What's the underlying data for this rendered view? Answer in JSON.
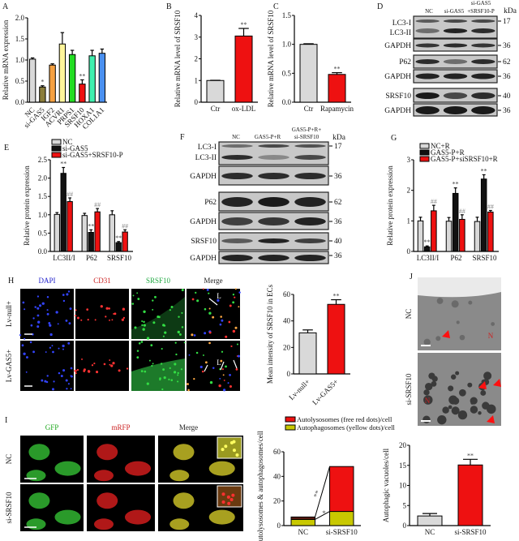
{
  "panels": {
    "A": "A",
    "B": "B",
    "C": "C",
    "D": "D",
    "E": "E",
    "F": "F",
    "G": "G",
    "H": "H",
    "I": "I",
    "J": "J"
  },
  "colors": {
    "grey": "#d9d9d9",
    "red": "#ee1111",
    "black": "#111111",
    "olive": "#8b7d3a",
    "yellow": "#c8c800",
    "darkred": "#5a1a10"
  },
  "chart_data": [
    {
      "id": "A",
      "type": "bar",
      "ylabel": "Relative mRNA expression",
      "ylim": [
        0,
        2.0
      ],
      "ticks": [
        "0.0",
        "0.5",
        "1.0",
        "1.5",
        "2.0"
      ],
      "tick_values": [
        0,
        0.5,
        1,
        1.5,
        2
      ],
      "categories": [
        "NC",
        "si-GAS5",
        "IGF2",
        "ACVR1",
        "PRPS1",
        "SRSF10",
        "HOXA1",
        "COL1A1"
      ],
      "series": [
        {
          "name": "",
          "values": [
            1.02,
            0.36,
            0.88,
            1.38,
            1.13,
            0.43,
            1.1,
            1.16
          ],
          "errors": [
            0.03,
            0.03,
            0.03,
            0.27,
            0.1,
            0.1,
            0.13,
            0.1
          ],
          "colors": [
            "#d9d9d9",
            "#8b7d3a",
            "#f5a040",
            "#fff59a",
            "#22dd22",
            "#ee1111",
            "#40f0b0",
            "#4a90f0"
          ],
          "sig": [
            "",
            "*",
            "",
            "",
            "",
            "**",
            "",
            ""
          ]
        }
      ]
    },
    {
      "id": "B",
      "type": "bar",
      "ylabel": "Relative mRNA level of SRSF10",
      "ylim": [
        0,
        4
      ],
      "ticks": [
        "0",
        "1",
        "2",
        "3",
        "4"
      ],
      "tick_values": [
        0,
        1,
        2,
        3,
        4
      ],
      "categories": [
        "Ctr",
        "ox-LDL"
      ],
      "series": [
        {
          "name": "",
          "values": [
            1.0,
            3.05
          ],
          "errors": [
            0.01,
            0.35
          ],
          "colors": [
            "#d9d9d9",
            "#ee1111"
          ],
          "sig": [
            "",
            "**"
          ]
        }
      ]
    },
    {
      "id": "C",
      "type": "bar",
      "ylabel": "Relative mRNA level of SRSF10",
      "ylim": [
        0,
        1.5
      ],
      "ticks": [
        "0.0",
        "0.5",
        "1.0",
        "1.5"
      ],
      "tick_values": [
        0,
        0.5,
        1,
        1.5
      ],
      "categories": [
        "Ctr",
        "Rapamycin"
      ],
      "series": [
        {
          "name": "",
          "values": [
            1.0,
            0.48
          ],
          "errors": [
            0.01,
            0.03
          ],
          "colors": [
            "#d9d9d9",
            "#ee1111"
          ],
          "sig": [
            "",
            "**"
          ]
        }
      ]
    },
    {
      "id": "E",
      "type": "bar",
      "ylabel": "Relative protein expression",
      "ylim": [
        0,
        2.5
      ],
      "ticks": [
        "0.0",
        "0.5",
        "1.0",
        "1.5",
        "2.0",
        "2.5"
      ],
      "tick_values": [
        0,
        0.5,
        1,
        1.5,
        2,
        2.5
      ],
      "legend_position": "top",
      "categories": [
        "LC3II/I",
        "P62",
        "SRSF10"
      ],
      "series": [
        {
          "name": "NC",
          "values": [
            1.01,
            0.98,
            1.0
          ],
          "errors": [
            0.05,
            0.06,
            0.11
          ],
          "color": "#d9d9d9",
          "sig": [
            "",
            "",
            ""
          ]
        },
        {
          "name": "si-GAS5",
          "values": [
            2.13,
            0.52,
            0.24
          ],
          "errors": [
            0.16,
            0.07,
            0.03
          ],
          "color": "#111111",
          "sig": [
            "**",
            "**",
            "**"
          ]
        },
        {
          "name": "si-GAS5+SRSF10-P",
          "values": [
            1.36,
            1.08,
            0.53
          ],
          "errors": [
            0.1,
            0.09,
            0.06
          ],
          "color": "#ee1111",
          "sig": [
            "##",
            "##",
            "##"
          ]
        }
      ]
    },
    {
      "id": "G",
      "type": "bar",
      "ylabel": "Relative protein expression",
      "ylim": [
        0,
        3
      ],
      "ticks": [
        "0",
        "1",
        "2",
        "3"
      ],
      "tick_values": [
        0,
        1,
        2,
        3
      ],
      "legend_position": "top",
      "categories": [
        "LC3II/I",
        "P62",
        "SRSF10"
      ],
      "series": [
        {
          "name": "NC+R",
          "values": [
            1.0,
            0.99,
            0.98
          ],
          "errors": [
            0.12,
            0.12,
            0.14
          ],
          "color": "#d9d9d9",
          "sig": [
            "",
            "",
            ""
          ]
        },
        {
          "name": "GAS5-P+R",
          "values": [
            0.15,
            1.9,
            2.37
          ],
          "errors": [
            0.03,
            0.18,
            0.14
          ],
          "color": "#111111",
          "sig": [
            "**",
            "**",
            "**"
          ]
        },
        {
          "name": "GAS5-P+siSRSF10+R",
          "values": [
            1.33,
            1.05,
            1.29
          ],
          "errors": [
            0.18,
            0.15,
            0.05
          ],
          "color": "#ee1111",
          "sig": [
            "##",
            "##",
            "##"
          ]
        }
      ]
    },
    {
      "id": "H",
      "type": "bar",
      "ylabel": "Mean intensity of SRSF10 in ECs",
      "ylim": [
        0,
        60
      ],
      "ticks": [
        "0",
        "20",
        "40",
        "60"
      ],
      "tick_values": [
        0,
        20,
        40,
        60
      ],
      "categories": [
        "Lv-null+",
        "Lv-GAS5+"
      ],
      "series": [
        {
          "name": "",
          "values": [
            31,
            52.5
          ],
          "errors": [
            2.2,
            3.5
          ],
          "colors": [
            "#d9d9d9",
            "#ee1111"
          ],
          "sig": [
            "",
            "**"
          ]
        }
      ]
    },
    {
      "id": "I",
      "type": "stacked-bar",
      "ylabel": "Autolysosomes & autophagosomes/cell",
      "ylim": [
        0,
        60
      ],
      "ticks": [
        "0",
        "20",
        "40",
        "60"
      ],
      "tick_values": [
        0,
        20,
        40,
        60
      ],
      "legend_position": "top",
      "categories": [
        "NC",
        "si-SRSF10"
      ],
      "series": [
        {
          "name": "Autophagosomes (yellow dots)/cell",
          "values": [
            5,
            11.5
          ],
          "color": "#c8c800"
        },
        {
          "name": "Autolysosomes (free red dots)/cell",
          "values": [
            2,
            36.5
          ],
          "color": "#ee1111",
          "nc_color": "#5a1a10"
        }
      ],
      "annotations": [
        "**",
        "*"
      ]
    },
    {
      "id": "J",
      "type": "bar",
      "ylabel": "Autophagic vacuoles/cell",
      "ylim": [
        0,
        20
      ],
      "ticks": [
        "0",
        "5",
        "10",
        "15",
        "20"
      ],
      "tick_values": [
        0,
        5,
        10,
        15,
        20
      ],
      "categories": [
        "NC",
        "si-SRSF10"
      ],
      "series": [
        {
          "name": "",
          "values": [
            2.4,
            15.1
          ],
          "errors": [
            0.6,
            1.4
          ],
          "colors": [
            "#d9d9d9",
            "#ee1111"
          ],
          "sig": [
            "",
            "**"
          ]
        }
      ]
    }
  ],
  "blots": {
    "D": {
      "lanes": [
        "NC",
        "si-GAS5",
        "si-GAS5",
        "+SRSF10-P"
      ],
      "unit": "kDa",
      "rows": [
        {
          "label": "LC3-I",
          "kda": "17"
        },
        {
          "label": "LC3-II",
          "kda": ""
        },
        {
          "label": "GAPDH",
          "kda": "36"
        },
        {
          "label": "P62",
          "kda": "62"
        },
        {
          "label": "GAPDH",
          "kda": "36"
        },
        {
          "label": "SRSF10",
          "kda": "40"
        },
        {
          "label": "GAPDH",
          "kda": "36"
        }
      ]
    },
    "F": {
      "lanes": [
        "NC",
        "GAS5-P+R",
        "GAS5-P+R+",
        "si-SRSF10"
      ],
      "unit": "kDa",
      "rows": [
        {
          "label": "LC3-I",
          "kda": "17"
        },
        {
          "label": "LC3-II",
          "kda": ""
        },
        {
          "label": "GAPDH",
          "kda": "36"
        },
        {
          "label": "P62",
          "kda": "62"
        },
        {
          "label": "GAPDH",
          "kda": "36"
        },
        {
          "label": "SRSF10",
          "kda": "40"
        },
        {
          "label": "GAPDH",
          "kda": "36"
        }
      ]
    }
  },
  "micro_H": {
    "columns": [
      "DAPI",
      "CD31",
      "SRSF10",
      "Merge"
    ],
    "column_colors": [
      "#2222cc",
      "#cc2222",
      "#22aa44",
      "#222222"
    ],
    "rows": [
      "Lv-null+",
      "Lv-GAS5+"
    ],
    "lumen": "L"
  },
  "micro_I": {
    "columns": [
      "GFP",
      "mRFP",
      "Merge"
    ],
    "column_colors": [
      "#22aa22",
      "#cc2222",
      "#222222"
    ],
    "rows": [
      "NC",
      "si-SRSF10"
    ]
  },
  "em_J": {
    "rows": [
      "NC",
      "si-SRSF10"
    ],
    "nucleus": "N"
  }
}
